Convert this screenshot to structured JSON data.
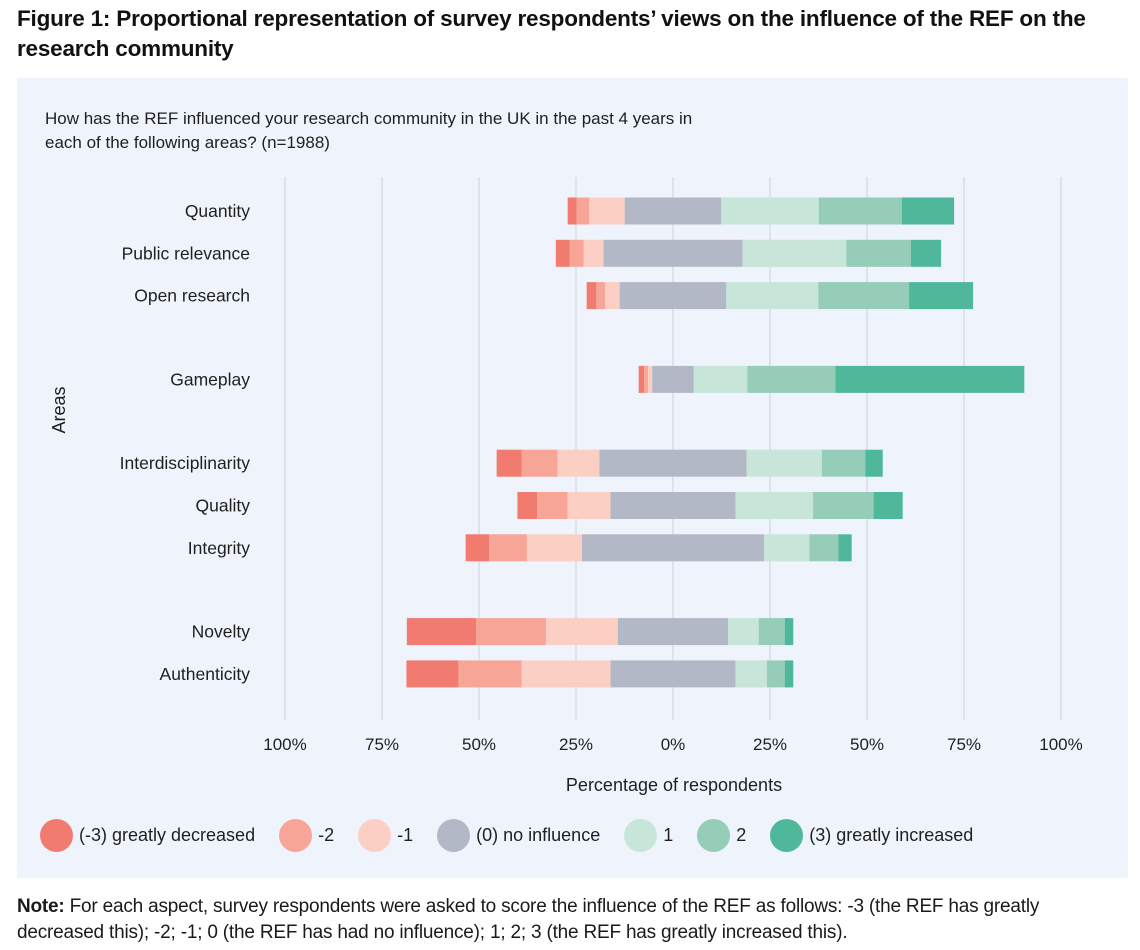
{
  "figure": {
    "title": "Figure 1: Proportional representation of survey respondents’ views on the influence of the REF on the research community",
    "note_label": "Note:",
    "note_text": " For each aspect, survey respondents were asked to score the influence of the REF as follows: -3 (the REF has greatly decreased this); -2; -1; 0 (the REF has had no influence); 1; 2; 3 (the REF has greatly increased this)."
  },
  "chart_data": {
    "type": "bar",
    "subtype": "diverging-stacked-horizontal",
    "title": "How has the REF influenced your research community in the UK in the past 4 years in each of the following areas? (n=1988)",
    "xlabel": "Percentage of respondents",
    "ylabel": "Areas",
    "xlim": [
      -100,
      100
    ],
    "x_ticks": [
      -100,
      -75,
      -50,
      -25,
      0,
      25,
      50,
      75,
      100
    ],
    "x_tick_labels": [
      "100%",
      "75%",
      "50%",
      "25%",
      "0%",
      "25%",
      "50%",
      "75%",
      "100%"
    ],
    "grid": "vertical",
    "legend_position": "bottom",
    "neutral_centered": true,
    "groups": [
      [
        "Quantity",
        "Public relevance",
        "Open research"
      ],
      [
        "Gameplay"
      ],
      [
        "Interdisciplinarity",
        "Quality",
        "Integrity"
      ],
      [
        "Novelty",
        "Authenticity"
      ]
    ],
    "categories": [
      "Quantity",
      "Public relevance",
      "Open research",
      "Gameplay",
      "Interdisciplinarity",
      "Quality",
      "Integrity",
      "Novelty",
      "Authenticity"
    ],
    "series": [
      {
        "key": "m3",
        "name": "(-3) greatly decreased",
        "color": "#f07b6e",
        "values": [
          2.3,
          3.6,
          2.5,
          1.4,
          6.4,
          5.1,
          6.1,
          17.9,
          13.4
        ]
      },
      {
        "key": "m2",
        "name": "-2",
        "color": "#f6a597",
        "values": [
          3.3,
          3.6,
          2.3,
          1.0,
          9.3,
          7.8,
          9.7,
          18.0,
          16.3
        ]
      },
      {
        "key": "m1",
        "name": "-1",
        "color": "#fbcfc3",
        "values": [
          9.1,
          5.1,
          3.7,
          1.1,
          10.8,
          11.1,
          14.2,
          18.5,
          22.9
        ]
      },
      {
        "key": "z0",
        "name": "(0) no influence",
        "color": "#b2b8c5",
        "values": [
          24.9,
          35.8,
          27.5,
          10.7,
          37.9,
          32.2,
          46.9,
          28.4,
          32.2
        ]
      },
      {
        "key": "p1",
        "name": "1",
        "color": "#c7e5d9",
        "values": [
          25.1,
          26.8,
          23.7,
          13.8,
          19.4,
          20.0,
          11.7,
          7.9,
          8.1
        ]
      },
      {
        "key": "p2",
        "name": "2",
        "color": "#95cdb8",
        "values": [
          21.4,
          16.6,
          23.4,
          22.7,
          11.2,
          15.6,
          7.5,
          6.7,
          4.6
        ]
      },
      {
        "key": "p3",
        "name": "(3) greatly increased",
        "color": "#4fb79a",
        "values": [
          13.5,
          7.8,
          16.5,
          48.7,
          4.5,
          7.5,
          3.4,
          2.2,
          2.2
        ]
      }
    ]
  }
}
